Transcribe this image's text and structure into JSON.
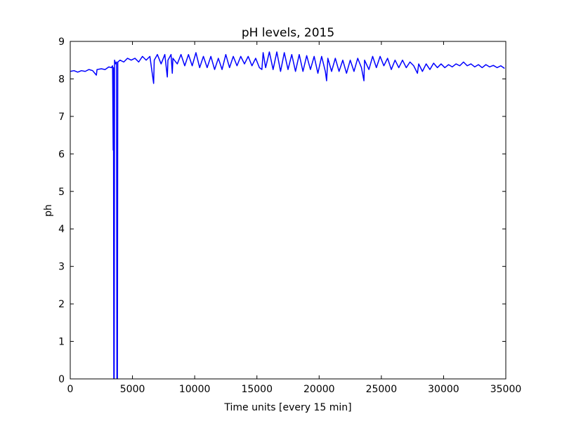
{
  "chart_data": {
    "type": "line",
    "title": "pH levels, 2015",
    "x_label": "Time units [every 15 min]",
    "y_label": "ph",
    "color": "#0000ff",
    "x": [
      0,
      300,
      600,
      900,
      1200,
      1500,
      1800,
      2100,
      2150,
      2500,
      2800,
      3100,
      3300,
      3400,
      3450,
      3470,
      3500,
      3530,
      3560,
      3650,
      3720,
      3750,
      3790,
      3820,
      4000,
      4300,
      4600,
      4900,
      5200,
      5500,
      5800,
      6100,
      6400,
      6700,
      6750,
      7000,
      7300,
      7600,
      7800,
      7850,
      8100,
      8200,
      8250,
      8600,
      8900,
      9200,
      9500,
      9800,
      10100,
      10400,
      10700,
      11000,
      11300,
      11600,
      11900,
      12200,
      12500,
      12800,
      13100,
      13400,
      13700,
      14000,
      14300,
      14600,
      14900,
      15200,
      15400,
      15500,
      15700,
      16000,
      16300,
      16600,
      16900,
      17200,
      17500,
      17800,
      18100,
      18400,
      18700,
      19000,
      19300,
      19600,
      19900,
      20200,
      20500,
      20600,
      20700,
      21000,
      21300,
      21600,
      21900,
      22200,
      22500,
      22800,
      23100,
      23400,
      23600,
      23650,
      24000,
      24300,
      24600,
      24900,
      25200,
      25500,
      25800,
      26100,
      26400,
      26700,
      27000,
      27300,
      27600,
      27900,
      28000,
      28300,
      28600,
      28900,
      29200,
      29500,
      29800,
      30100,
      30400,
      30700,
      31000,
      31300,
      31600,
      31900,
      32200,
      32500,
      32800,
      33100,
      33400,
      33700,
      34000,
      34300,
      34600,
      34900
    ],
    "values": [
      8.2,
      8.22,
      8.18,
      8.22,
      8.2,
      8.25,
      8.22,
      8.1,
      8.25,
      8.27,
      8.25,
      8.32,
      8.3,
      8.35,
      6.1,
      8.3,
      0,
      0,
      8.5,
      8.4,
      8.45,
      0,
      0,
      8.45,
      8.5,
      8.45,
      8.55,
      8.5,
      8.55,
      8.45,
      8.6,
      8.5,
      8.6,
      7.88,
      8.5,
      8.65,
      8.4,
      8.65,
      8.05,
      8.5,
      8.65,
      8.15,
      8.55,
      8.4,
      8.65,
      8.35,
      8.65,
      8.35,
      8.7,
      8.3,
      8.6,
      8.3,
      8.6,
      8.25,
      8.55,
      8.25,
      8.65,
      8.3,
      8.6,
      8.35,
      8.6,
      8.4,
      8.6,
      8.35,
      8.55,
      8.3,
      8.25,
      8.7,
      8.3,
      8.72,
      8.25,
      8.72,
      8.2,
      8.7,
      8.25,
      8.65,
      8.2,
      8.65,
      8.2,
      8.62,
      8.25,
      8.6,
      8.15,
      8.6,
      8.2,
      7.95,
      8.55,
      8.2,
      8.55,
      8.2,
      8.5,
      8.15,
      8.5,
      8.2,
      8.55,
      8.3,
      7.95,
      8.5,
      8.25,
      8.6,
      8.3,
      8.6,
      8.35,
      8.55,
      8.25,
      8.5,
      8.3,
      8.5,
      8.3,
      8.45,
      8.35,
      8.15,
      8.4,
      8.2,
      8.4,
      8.25,
      8.42,
      8.3,
      8.4,
      8.3,
      8.38,
      8.32,
      8.4,
      8.35,
      8.45,
      8.35,
      8.4,
      8.32,
      8.38,
      8.3,
      8.38,
      8.32,
      8.36,
      8.3,
      8.35,
      8.28
    ],
    "xlim": [
      0,
      35000
    ],
    "xticks": [
      0,
      5000,
      10000,
      15000,
      20000,
      25000,
      30000,
      35000
    ],
    "ylim": [
      0,
      9
    ],
    "yticks": [
      0,
      1,
      2,
      3,
      4,
      5,
      6,
      7,
      8,
      9
    ]
  }
}
